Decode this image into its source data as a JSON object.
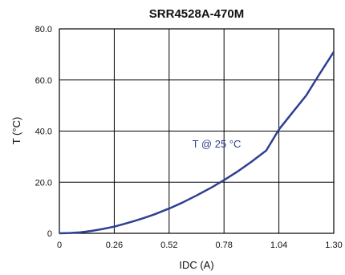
{
  "chart_data": {
    "type": "line",
    "title": "SRR4528A-470M",
    "xlabel": "IDC (A)",
    "ylabel": "T (°C)",
    "xlim": [
      0,
      1.3
    ],
    "ylim": [
      0,
      80
    ],
    "x_ticks": [
      "0",
      "0.26",
      "0.52",
      "0.78",
      "1.04",
      "1.30"
    ],
    "y_ticks": [
      "0",
      "20.0",
      "40.0",
      "60.0",
      "80.0"
    ],
    "grid": true,
    "annotation": "T @ 25 °C",
    "colors": {
      "curve": "#2e3f94",
      "annotation": "#2e3f94",
      "grid": "#000000"
    },
    "series": [
      {
        "x": [
          0,
          0.05,
          0.1,
          0.15,
          0.2,
          0.26,
          0.3,
          0.35,
          0.4,
          0.45,
          0.52,
          0.58,
          0.65,
          0.72,
          0.78,
          0.85,
          0.91,
          0.98,
          1.04,
          1.1,
          1.17,
          1.23,
          1.3
        ],
        "y": [
          0,
          0.1,
          0.4,
          0.9,
          1.6,
          2.6,
          3.5,
          4.7,
          6.0,
          7.4,
          9.7,
          11.9,
          14.8,
          17.9,
          20.8,
          24.5,
          28.0,
          32.4,
          40.6,
          46.8,
          54.0,
          62.0,
          71.0
        ]
      }
    ]
  }
}
